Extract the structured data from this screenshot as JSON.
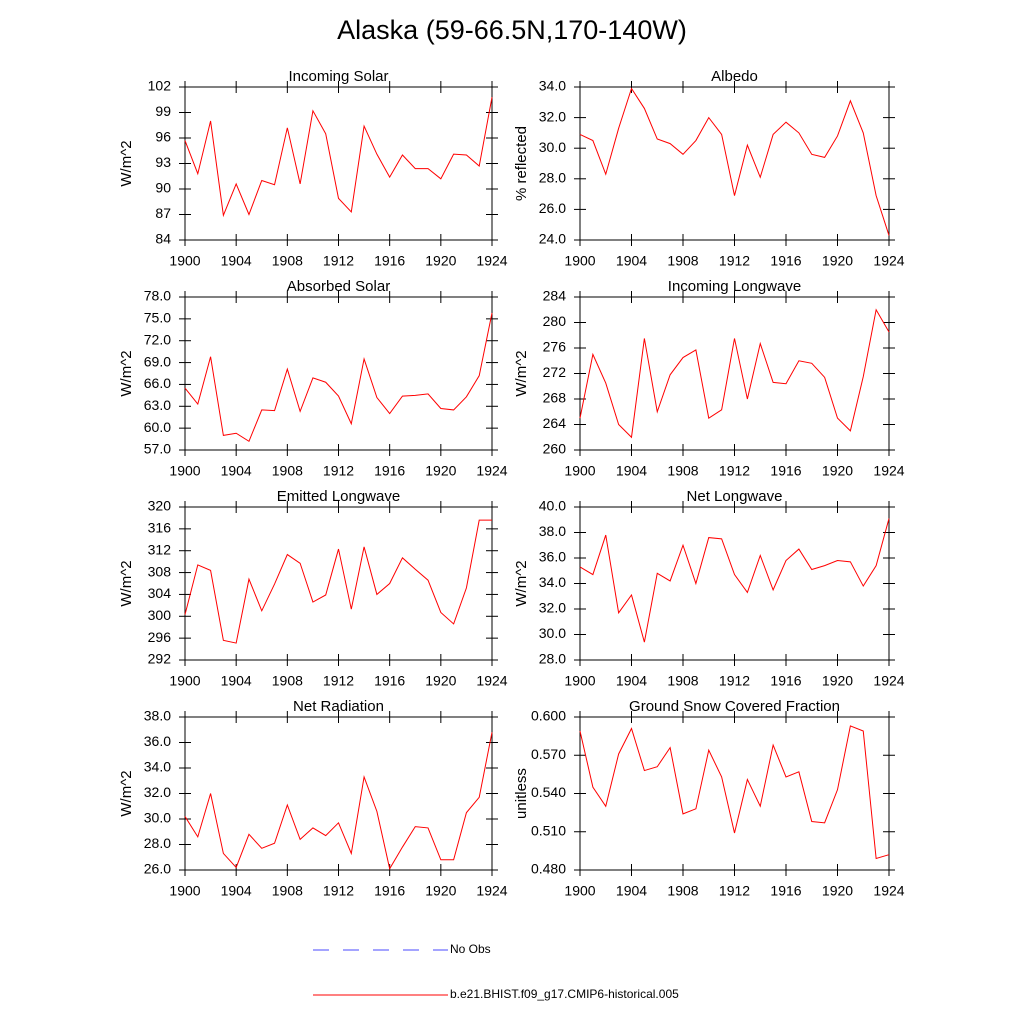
{
  "title": "Alaska (59-66.5N,170-140W)",
  "legend": [
    {
      "name": "No Obs",
      "color": "#4a4aff",
      "dashed": true
    },
    {
      "name": "b.e21.BHIST.f09_g17.CMIP6-historical.005",
      "color": "#ff0000",
      "dashed": false
    }
  ],
  "chart_data": [
    {
      "type": "line",
      "title": "Incoming Solar",
      "y_label": "W/m^2",
      "color": "#ff0000",
      "x": [
        1900,
        1901,
        1902,
        1903,
        1904,
        1905,
        1906,
        1907,
        1908,
        1909,
        1910,
        1911,
        1912,
        1913,
        1914,
        1915,
        1916,
        1917,
        1918,
        1919,
        1920,
        1921,
        1922,
        1923,
        1924
      ],
      "values": [
        95.7,
        91.8,
        98.0,
        86.9,
        90.6,
        87.0,
        91.0,
        90.5,
        97.2,
        90.6,
        99.2,
        96.5,
        88.9,
        87.3,
        97.4,
        94.1,
        91.4,
        94.0,
        92.4,
        92.4,
        91.2,
        94.1,
        94.0,
        92.7,
        100.8
      ],
      "xlim": [
        1900,
        1924
      ],
      "xticks": [
        1900,
        1904,
        1908,
        1912,
        1916,
        1920,
        1924
      ],
      "ylim": [
        84,
        102
      ],
      "yticks": [
        84,
        87,
        90,
        93,
        96,
        99,
        102
      ]
    },
    {
      "type": "line",
      "title": "Albedo",
      "y_label": "% reflected",
      "color": "#ff0000",
      "x": [
        1900,
        1901,
        1902,
        1903,
        1904,
        1905,
        1906,
        1907,
        1908,
        1909,
        1910,
        1911,
        1912,
        1913,
        1914,
        1915,
        1916,
        1917,
        1918,
        1919,
        1920,
        1921,
        1922,
        1923,
        1924
      ],
      "values": [
        30.9,
        30.5,
        28.3,
        31.3,
        33.9,
        32.6,
        30.6,
        30.3,
        29.6,
        30.5,
        32.0,
        30.9,
        26.9,
        30.2,
        28.1,
        30.9,
        31.7,
        31.0,
        29.6,
        29.4,
        30.8,
        33.1,
        31.0,
        26.9,
        24.3
      ],
      "xlim": [
        1900,
        1924
      ],
      "xticks": [
        1900,
        1904,
        1908,
        1912,
        1916,
        1920,
        1924
      ],
      "ylim": [
        24,
        34
      ],
      "yticks": [
        {
          "value": 24,
          "label": "24.0"
        },
        {
          "value": 26,
          "label": "26.0"
        },
        {
          "value": 28,
          "label": "28.0"
        },
        {
          "value": 30,
          "label": "30.0"
        },
        {
          "value": 32,
          "label": "32.0"
        },
        {
          "value": 34,
          "label": "34.0"
        }
      ]
    },
    {
      "type": "line",
      "title": "Absorbed Solar",
      "y_label": "W/m^2",
      "color": "#ff0000",
      "x": [
        1900,
        1901,
        1902,
        1903,
        1904,
        1905,
        1906,
        1907,
        1908,
        1909,
        1910,
        1911,
        1912,
        1913,
        1914,
        1915,
        1916,
        1917,
        1918,
        1919,
        1920,
        1921,
        1922,
        1923,
        1924
      ],
      "values": [
        65.5,
        63.3,
        69.8,
        59.0,
        59.3,
        58.2,
        62.5,
        62.4,
        68.1,
        62.3,
        66.9,
        66.3,
        64.4,
        60.6,
        69.5,
        64.2,
        62.0,
        64.4,
        64.5,
        64.7,
        62.7,
        62.5,
        64.3,
        67.2,
        75.8
      ],
      "xlim": [
        1900,
        1924
      ],
      "xticks": [
        1900,
        1904,
        1908,
        1912,
        1916,
        1920,
        1924
      ],
      "ylim": [
        57,
        78
      ],
      "yticks": [
        {
          "value": 57,
          "label": "57.0"
        },
        {
          "value": 60,
          "label": "60.0"
        },
        {
          "value": 63,
          "label": "63.0"
        },
        {
          "value": 66,
          "label": "66.0"
        },
        {
          "value": 69,
          "label": "69.0"
        },
        {
          "value": 72,
          "label": "72.0"
        },
        {
          "value": 75,
          "label": "75.0"
        },
        {
          "value": 78,
          "label": "78.0"
        }
      ]
    },
    {
      "type": "line",
      "title": "Incoming Longwave",
      "y_label": "W/m^2",
      "color": "#ff0000",
      "x": [
        1900,
        1901,
        1902,
        1903,
        1904,
        1905,
        1906,
        1907,
        1908,
        1909,
        1910,
        1911,
        1912,
        1913,
        1914,
        1915,
        1916,
        1917,
        1918,
        1919,
        1920,
        1921,
        1922,
        1923,
        1924
      ],
      "values": [
        265.0,
        275.0,
        270.5,
        264.0,
        262.0,
        277.5,
        266.0,
        271.8,
        274.5,
        275.7,
        265.0,
        266.3,
        277.5,
        268.0,
        276.7,
        270.6,
        270.4,
        274.0,
        273.6,
        271.4,
        265.0,
        263.0,
        271.5,
        282.0,
        278.5
      ],
      "xlim": [
        1900,
        1924
      ],
      "xticks": [
        1900,
        1904,
        1908,
        1912,
        1916,
        1920,
        1924
      ],
      "ylim": [
        260,
        284
      ],
      "yticks": [
        260,
        264,
        268,
        272,
        276,
        280,
        284
      ]
    },
    {
      "type": "line",
      "title": "Emitted Longwave",
      "y_label": "W/m^2",
      "color": "#ff0000",
      "x": [
        1900,
        1901,
        1902,
        1903,
        1904,
        1905,
        1906,
        1907,
        1908,
        1909,
        1910,
        1911,
        1912,
        1913,
        1914,
        1915,
        1916,
        1917,
        1918,
        1919,
        1920,
        1921,
        1922,
        1923,
        1924
      ],
      "values": [
        300.3,
        309.4,
        308.4,
        295.6,
        295.1,
        306.8,
        301.0,
        305.9,
        311.3,
        309.7,
        302.6,
        303.9,
        312.3,
        301.3,
        312.7,
        304.0,
        306.0,
        310.7,
        308.6,
        306.6,
        300.7,
        298.6,
        305.2,
        317.6,
        317.6
      ],
      "xlim": [
        1900,
        1924
      ],
      "xticks": [
        1900,
        1904,
        1908,
        1912,
        1916,
        1920,
        1924
      ],
      "ylim": [
        292,
        320
      ],
      "yticks": [
        292,
        296,
        300,
        304,
        308,
        312,
        316,
        320
      ]
    },
    {
      "type": "line",
      "title": "Net Longwave",
      "y_label": "W/m^2",
      "color": "#ff0000",
      "x": [
        1900,
        1901,
        1902,
        1903,
        1904,
        1905,
        1906,
        1907,
        1908,
        1909,
        1910,
        1911,
        1912,
        1913,
        1914,
        1915,
        1916,
        1917,
        1918,
        1919,
        1920,
        1921,
        1922,
        1923,
        1924
      ],
      "values": [
        35.3,
        34.7,
        37.8,
        31.7,
        33.1,
        29.4,
        34.8,
        34.2,
        37.0,
        34.0,
        37.6,
        37.5,
        34.7,
        33.3,
        36.2,
        33.5,
        35.8,
        36.7,
        35.1,
        35.4,
        35.8,
        35.7,
        33.8,
        35.4,
        39.1
      ],
      "xlim": [
        1900,
        1924
      ],
      "xticks": [
        1900,
        1904,
        1908,
        1912,
        1916,
        1920,
        1924
      ],
      "ylim": [
        28,
        40
      ],
      "yticks": [
        {
          "value": 28,
          "label": "28.0"
        },
        {
          "value": 30,
          "label": "30.0"
        },
        {
          "value": 32,
          "label": "32.0"
        },
        {
          "value": 34,
          "label": "34.0"
        },
        {
          "value": 36,
          "label": "36.0"
        },
        {
          "value": 38,
          "label": "38.0"
        },
        {
          "value": 40,
          "label": "40.0"
        }
      ]
    },
    {
      "type": "line",
      "title": "Net Radiation",
      "y_label": "W/m^2",
      "color": "#ff0000",
      "x": [
        1900,
        1901,
        1902,
        1903,
        1904,
        1905,
        1906,
        1907,
        1908,
        1909,
        1910,
        1911,
        1912,
        1913,
        1914,
        1915,
        1916,
        1917,
        1918,
        1919,
        1920,
        1921,
        1922,
        1923,
        1924
      ],
      "values": [
        30.2,
        28.6,
        32.0,
        27.3,
        26.2,
        28.8,
        27.7,
        28.1,
        31.1,
        28.4,
        29.3,
        28.7,
        29.7,
        27.3,
        33.3,
        30.6,
        26.1,
        27.8,
        29.4,
        29.3,
        26.8,
        26.8,
        30.5,
        31.7,
        36.8
      ],
      "xlim": [
        1900,
        1924
      ],
      "xticks": [
        1900,
        1904,
        1908,
        1912,
        1916,
        1920,
        1924
      ],
      "ylim": [
        26,
        38
      ],
      "yticks": [
        {
          "value": 26,
          "label": "26.0"
        },
        {
          "value": 28,
          "label": "28.0"
        },
        {
          "value": 30,
          "label": "30.0"
        },
        {
          "value": 32,
          "label": "32.0"
        },
        {
          "value": 34,
          "label": "34.0"
        },
        {
          "value": 36,
          "label": "36.0"
        },
        {
          "value": 38,
          "label": "38.0"
        }
      ]
    },
    {
      "type": "line",
      "title": "Ground Snow Covered Fraction",
      "y_label": "unitless",
      "color": "#ff0000",
      "x": [
        1900,
        1901,
        1902,
        1903,
        1904,
        1905,
        1906,
        1907,
        1908,
        1909,
        1910,
        1911,
        1912,
        1913,
        1914,
        1915,
        1916,
        1917,
        1918,
        1919,
        1920,
        1921,
        1922,
        1923,
        1924
      ],
      "values": [
        0.589,
        0.545,
        0.53,
        0.571,
        0.591,
        0.558,
        0.561,
        0.576,
        0.524,
        0.528,
        0.574,
        0.553,
        0.509,
        0.551,
        0.53,
        0.578,
        0.553,
        0.557,
        0.518,
        0.517,
        0.543,
        0.593,
        0.589,
        0.489,
        0.492
      ],
      "xlim": [
        1900,
        1924
      ],
      "xticks": [
        1900,
        1904,
        1908,
        1912,
        1916,
        1920,
        1924
      ],
      "ylim": [
        0.48,
        0.6
      ],
      "yticks": [
        {
          "value": 0.48,
          "label": "0.480"
        },
        {
          "value": 0.51,
          "label": "0.510"
        },
        {
          "value": 0.54,
          "label": "0.540"
        },
        {
          "value": 0.57,
          "label": "0.570"
        },
        {
          "value": 0.6,
          "label": "0.600"
        }
      ]
    }
  ]
}
